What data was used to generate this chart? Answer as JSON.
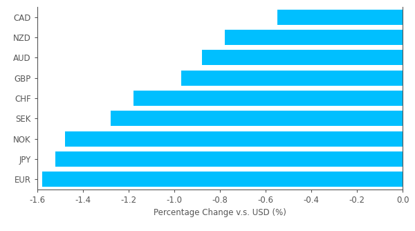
{
  "currencies": [
    "EUR",
    "JPY",
    "NOK",
    "SEK",
    "CHF",
    "GBP",
    "AUD",
    "NZD",
    "CAD"
  ],
  "values": [
    -1.58,
    -1.52,
    -1.48,
    -1.28,
    -1.18,
    -0.97,
    -0.88,
    -0.78,
    -0.55
  ],
  "bar_color": "#00BFFF",
  "xlabel": "Percentage Change v.s. USD (%)",
  "xlim": [
    -1.6,
    0.0
  ],
  "xticks": [
    -1.6,
    -1.4,
    -1.2,
    -1.0,
    -0.8,
    -0.6,
    -0.4,
    -0.2,
    0.0
  ],
  "background_color": "#ffffff",
  "bar_height": 0.75,
  "tick_fontsize": 8.5,
  "label_fontsize": 8.5,
  "spine_color": "#555555",
  "text_color": "#555555"
}
